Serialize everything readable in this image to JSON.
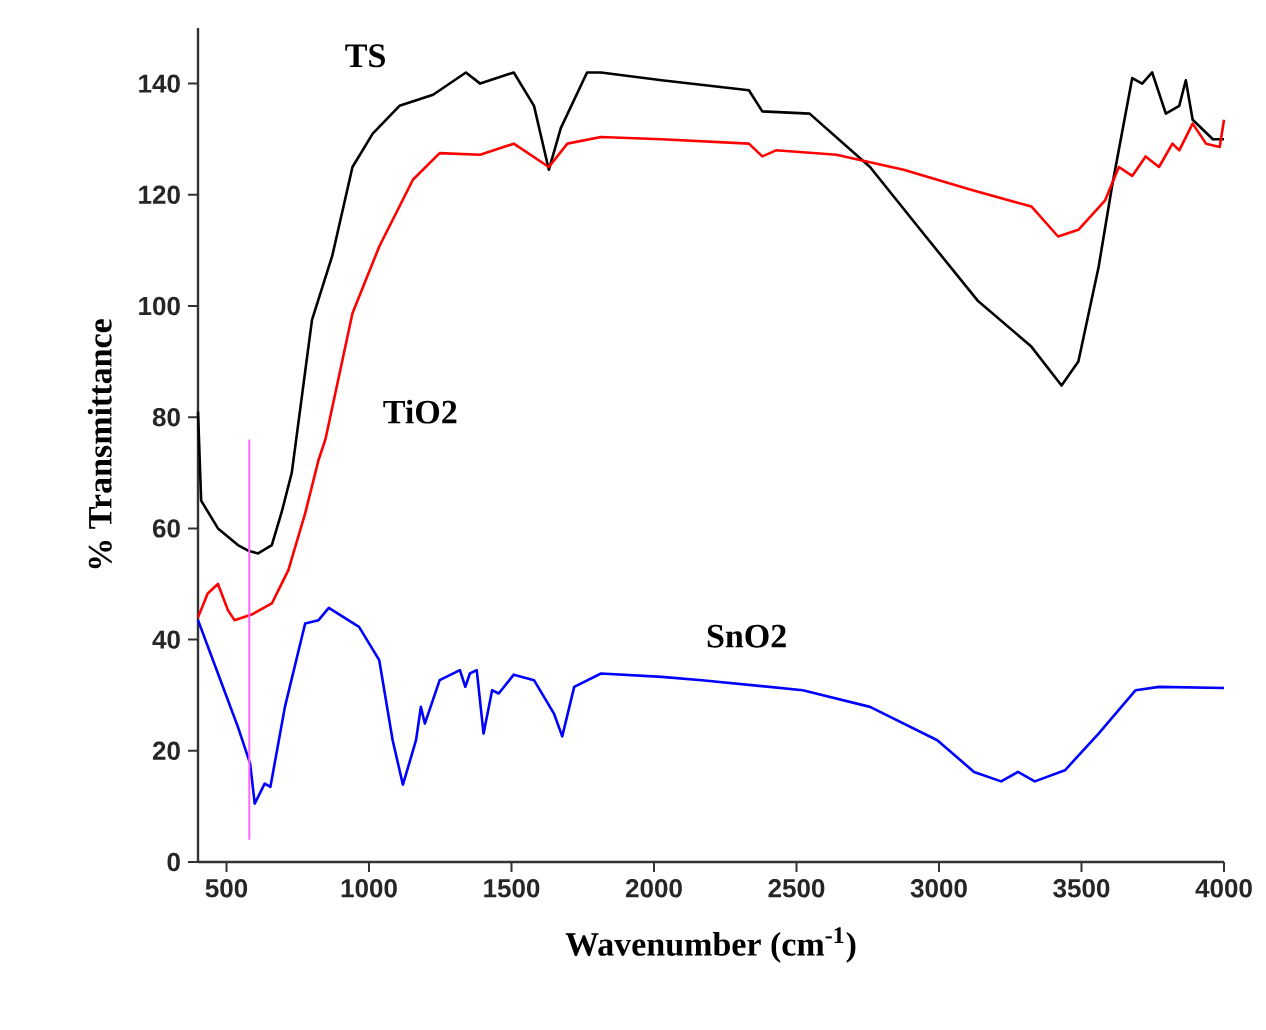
{
  "chart_data": {
    "type": "line",
    "xlabel": "Wavenumber (cm$^{-1}$)",
    "ylabel": "% Transmittance",
    "xlim": [
      400,
      4000
    ],
    "ylim": [
      0,
      150
    ],
    "xticks": [
      500,
      1000,
      1500,
      2000,
      2500,
      3000,
      3500,
      4000
    ],
    "yticks": [
      0,
      20,
      40,
      60,
      80,
      100,
      120,
      140
    ],
    "grid": false,
    "legend": false,
    "marker": "none",
    "line_style": "solid",
    "series": [
      {
        "name": "TS",
        "color": "#000000",
        "x": [
          400,
          411,
          470,
          540,
          576,
          611,
          659,
          694,
          729,
          800,
          871,
          942,
          1013,
          1107,
          1225,
          1340,
          1390,
          1508,
          1579,
          1631,
          1673,
          1765,
          1814,
          2027,
          2333,
          2380,
          2546,
          2758,
          2946,
          3135,
          3324,
          3430,
          3489,
          3560,
          3607,
          3678,
          3713,
          3748,
          3796,
          3843,
          3866,
          3890,
          3961,
          4000
        ],
        "values": [
          81,
          65,
          60,
          57,
          56,
          55.5,
          57,
          63,
          70,
          97.5,
          109,
          125,
          131,
          136,
          138,
          142,
          140,
          142,
          136,
          124.5,
          132,
          142,
          142,
          140.6,
          138.8,
          135,
          134.6,
          125,
          113,
          101,
          92.7,
          85.7,
          90,
          107,
          121.5,
          141,
          140,
          142,
          134.6,
          136,
          140.6,
          133.5,
          130,
          130
        ]
      },
      {
        "name": "TiO2",
        "color": "#ff0000",
        "x": [
          400,
          434,
          470,
          505,
          528,
          588,
          659,
          717,
          776,
          823,
          847,
          942,
          1036,
          1154,
          1248,
          1390,
          1508,
          1631,
          1696,
          1814,
          2027,
          2333,
          2380,
          2428,
          2640,
          2876,
          3112,
          3324,
          3418,
          3489,
          3583,
          3631,
          3678,
          3725,
          3772,
          3819,
          3843,
          3890,
          3937,
          3985,
          4000
        ],
        "values": [
          44,
          48.3,
          50,
          45.3,
          43.5,
          44.5,
          46.5,
          52.5,
          62.7,
          72.3,
          76,
          98.7,
          110.7,
          122.7,
          127.5,
          127.2,
          129.2,
          125,
          129.2,
          130.4,
          130,
          129.2,
          126.9,
          128,
          127.2,
          124.5,
          120.9,
          117.9,
          112.5,
          113.7,
          119,
          125,
          123.4,
          126.9,
          125,
          129.2,
          128,
          132.8,
          129.2,
          128.6,
          133.5
        ]
      },
      {
        "name": "SnO2",
        "color": "#0000ff",
        "x": [
          400,
          470,
          540,
          583,
          599,
          634,
          654,
          705,
          776,
          823,
          859,
          965,
          1036,
          1083,
          1119,
          1165,
          1182,
          1196,
          1248,
          1319,
          1338,
          1354,
          1378,
          1402,
          1432,
          1455,
          1508,
          1579,
          1649,
          1678,
          1720,
          1814,
          2027,
          2168,
          2522,
          2758,
          2994,
          3123,
          3218,
          3277,
          3336,
          3442,
          3560,
          3690,
          3772,
          4000
        ],
        "values": [
          43.5,
          33.9,
          24.3,
          17.7,
          10.5,
          14.1,
          13.5,
          27.9,
          42.9,
          43.5,
          45.7,
          42.3,
          36.3,
          21.9,
          13.9,
          21.9,
          27.9,
          24.9,
          32.7,
          34.5,
          31.5,
          33.9,
          34.5,
          23.1,
          30.9,
          30.3,
          33.7,
          32.7,
          26.7,
          22.6,
          31.5,
          33.9,
          33.3,
          32.7,
          30.9,
          27.9,
          21.9,
          16.2,
          14.5,
          16.2,
          14.5,
          16.5,
          23.1,
          30.9,
          31.5,
          31.3
        ]
      },
      {
        "color": "#ff66ff",
        "x": [
          580,
          580
        ],
        "values": [
          4,
          76
        ]
      }
    ]
  }
}
